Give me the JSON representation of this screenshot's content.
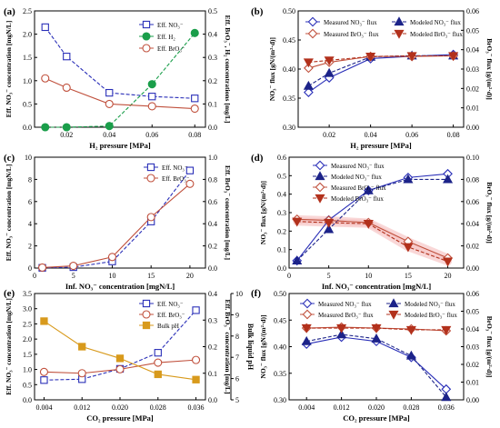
{
  "colors": {
    "blue": "#2a2fb8",
    "green": "#1a9e4a",
    "red": "#c0503c",
    "orange": "#d89a1c",
    "navy": "#1c2389",
    "darkred": "#b2311c",
    "pink": "#f0b2b2",
    "teal": "#3aa29a",
    "pinkband": "#f7c6c6"
  },
  "chart_data": [
    {
      "id": "a",
      "type": "line",
      "panel_label": "(a)",
      "xlabel": "H₂ pressure [MPa]",
      "ylabel": "Eff. NO₃⁻ concentration [mgN/L]",
      "y2label": "Eff. BrO₃⁻, H₂ concentrations [mg/L]",
      "xlim": [
        0.005,
        0.085
      ],
      "ylim": [
        0,
        2.5
      ],
      "y2lim": [
        0,
        0.5
      ],
      "xticks": [
        "0.02",
        "0.04",
        "0.06",
        "0.08"
      ],
      "yticks": [
        "0.0",
        "0.5",
        "1.0",
        "1.5",
        "2.0",
        "2.5"
      ],
      "y2ticks": [
        "0.0",
        "0.1",
        "0.2",
        "0.3",
        "0.4",
        "0.5"
      ],
      "x": [
        0.01,
        0.02,
        0.04,
        0.06,
        0.08
      ],
      "series": [
        {
          "name": "Eff. NO₃⁻",
          "axis": "left",
          "values": [
            2.15,
            1.52,
            0.74,
            0.66,
            0.62
          ]
        },
        {
          "name": "Eff. H₂",
          "axis": "right",
          "values": [
            0.0,
            0.0,
            0.005,
            0.185,
            0.405
          ]
        },
        {
          "name": "Eff. BrO₃⁻",
          "axis": "right",
          "values": [
            0.21,
            0.17,
            0.1,
            0.09,
            0.08
          ]
        }
      ],
      "legend": "top-right"
    },
    {
      "id": "b",
      "type": "line",
      "panel_label": "(b)",
      "xlabel": "H₂ pressure [MPa]",
      "ylabel": "NO₃⁻ flux [gN/(m²·d)]",
      "y2label": "BrO₃⁻ flux [g/(m²·d)]",
      "xlim": [
        0.005,
        0.085
      ],
      "ylim": [
        0.3,
        0.5
      ],
      "y2lim": [
        0,
        0.06
      ],
      "xticks": [
        "0.02",
        "0.04",
        "0.06",
        "0.08"
      ],
      "yticks": [
        "0.30",
        "0.35",
        "0.40",
        "0.45",
        "0.50"
      ],
      "y2ticks": [
        "0.00",
        "0.01",
        "0.02",
        "0.03",
        "0.04",
        "0.05",
        "0.06"
      ],
      "x": [
        0.01,
        0.02,
        0.04,
        0.06,
        0.08
      ],
      "series": [
        {
          "name": "Measured NO₃⁻ flux",
          "axis": "left",
          "values": [
            0.36,
            0.385,
            0.418,
            0.422,
            0.425
          ]
        },
        {
          "name": "Modeled NO₃⁻ flux",
          "axis": "left",
          "values": [
            0.371,
            0.393,
            0.421,
            0.423,
            0.423
          ]
        },
        {
          "name": "Measured BrO₃⁻ flux",
          "axis": "right",
          "values": [
            0.0305,
            0.0335,
            0.0365,
            0.0365,
            0.0368
          ]
        },
        {
          "name": "Modeled BrO₃⁻ flux",
          "axis": "right",
          "values": [
            0.0335,
            0.0345,
            0.0365,
            0.0368,
            0.0368
          ]
        }
      ],
      "legend": "top"
    },
    {
      "id": "c",
      "type": "line",
      "panel_label": "(c)",
      "xlabel": "Inf. NO₃⁻ concentration [mgN/L]",
      "ylabel": "Eff. NO₃⁻ concentration [mgN/L]",
      "y2label": "Eff. BrO₃⁻ concentration [mg/L]",
      "xlim": [
        0,
        22
      ],
      "ylim": [
        0,
        10
      ],
      "y2lim": [
        0,
        1.0
      ],
      "xticks": [
        "0",
        "5",
        "10",
        "15",
        "20"
      ],
      "yticks": [
        "0",
        "2",
        "4",
        "6",
        "8",
        "10"
      ],
      "y2ticks": [
        "0.0",
        "0.2",
        "0.4",
        "0.6",
        "0.8",
        "1.0"
      ],
      "x": [
        1,
        5,
        10,
        15,
        20
      ],
      "series": [
        {
          "name": "Eff. NO₃⁻",
          "axis": "left",
          "values": [
            0.02,
            0.08,
            0.6,
            4.2,
            8.8
          ]
        },
        {
          "name": "Eff. BrO₃⁻",
          "axis": "right",
          "values": [
            0.005,
            0.02,
            0.1,
            0.46,
            0.76
          ]
        }
      ],
      "legend": "top-right"
    },
    {
      "id": "d",
      "type": "line",
      "panel_label": "(d)",
      "xlabel": "Inf. NO₃⁻ concentration [mgN/L]",
      "ylabel": "NO₃⁻ flux [gN/(m²·d)]",
      "y2label": "BrO₃⁻ flux [g/(m²·d)]",
      "xlim": [
        0,
        22
      ],
      "ylim": [
        0,
        0.6
      ],
      "y2lim": [
        0,
        0.1
      ],
      "xticks": [
        "0",
        "5",
        "10",
        "15",
        "20"
      ],
      "yticks": [
        "0.0",
        "0.1",
        "0.2",
        "0.3",
        "0.4",
        "0.5",
        "0.6"
      ],
      "y2ticks": [
        "0.00",
        "0.02",
        "0.04",
        "0.06",
        "0.08",
        "0.10"
      ],
      "x": [
        1,
        5,
        10,
        15,
        20
      ],
      "series": [
        {
          "name": "Measured NO₃⁻ flux",
          "axis": "left",
          "values": [
            0.04,
            0.26,
            0.42,
            0.49,
            0.51
          ]
        },
        {
          "name": "Modeled NO₃⁻ flux",
          "axis": "left",
          "values": [
            0.04,
            0.21,
            0.42,
            0.48,
            0.48
          ]
        },
        {
          "name": "Measured BrO₃⁻ flux",
          "axis": "right",
          "values": [
            0.044,
            0.043,
            0.041,
            0.024,
            0.009
          ]
        },
        {
          "name": "Modeled BrO₃⁻ flux",
          "axis": "right",
          "values": [
            0.042,
            0.041,
            0.04,
            0.019,
            0.006
          ]
        }
      ],
      "legend": "top"
    },
    {
      "id": "e",
      "type": "line",
      "panel_label": "(e)",
      "xlabel": "CO₂ pressure [MPa]",
      "ylabel": "Eff. NO₃⁻ concentration [mgN/L]",
      "y2label": "Eff. BrO₃⁻ concentration [mg/L]",
      "y3label": "Bulk liquid pH",
      "xlim": [
        0.002,
        0.038
      ],
      "ylim": [
        0,
        3.5
      ],
      "y2lim": [
        0,
        0.4
      ],
      "y3lim": [
        5,
        10
      ],
      "xticks": [
        "0.004",
        "0.012",
        "0.020",
        "0.028",
        "0.036"
      ],
      "yticks": [
        "0.0",
        "0.5",
        "1.0",
        "1.5",
        "2.0",
        "2.5",
        "3.0",
        "3.5"
      ],
      "y2ticks": [
        "0.0",
        "0.1",
        "0.2",
        "0.3",
        "0.4"
      ],
      "y3ticks": [
        "5",
        "6",
        "7",
        "8",
        "9",
        "10"
      ],
      "x": [
        0.004,
        0.012,
        0.02,
        0.028,
        0.036
      ],
      "series": [
        {
          "name": "Eff. NO₃⁻",
          "axis": "left",
          "values": [
            0.65,
            0.68,
            1.02,
            1.55,
            2.95
          ]
        },
        {
          "name": "Eff. BrO₃⁻",
          "axis": "right",
          "values": [
            0.105,
            0.1,
            0.115,
            0.14,
            0.15
          ]
        },
        {
          "name": "Bulk pH",
          "axis": "right2",
          "values": [
            8.7,
            7.5,
            6.95,
            6.2,
            5.95
          ]
        }
      ],
      "legend": "top-left"
    },
    {
      "id": "f",
      "type": "line",
      "panel_label": "(f)",
      "xlabel": "CO₂ pressure [MPa]",
      "ylabel": "NO₃⁻ flux [gN/(m²·d)]",
      "y2label": "BrO₃⁻ flux [g/(m²·d)]",
      "xlim": [
        0,
        0.04
      ],
      "ylim": [
        0.3,
        0.5
      ],
      "y2lim": [
        0,
        0.06
      ],
      "xticks": [
        "0.004",
        "0.012",
        "0.020",
        "0.028",
        "0.036"
      ],
      "yticks": [
        "0.30",
        "0.35",
        "0.40",
        "0.45",
        "0.50"
      ],
      "y2ticks": [
        "0.00",
        "0.01",
        "0.02",
        "0.03",
        "0.04",
        "0.05",
        "0.06"
      ],
      "x": [
        0.004,
        0.012,
        0.02,
        0.028,
        0.036
      ],
      "series": [
        {
          "name": "Measured NO₃⁻ flux",
          "axis": "left",
          "values": [
            0.405,
            0.418,
            0.41,
            0.38,
            0.32
          ]
        },
        {
          "name": "Modeled NO₃⁻ flux",
          "axis": "left",
          "values": [
            0.41,
            0.423,
            0.415,
            0.383,
            0.305
          ]
        },
        {
          "name": "Measured BrO₃⁻ flux",
          "axis": "right",
          "values": [
            0.0405,
            0.041,
            0.0405,
            0.04,
            0.039
          ]
        },
        {
          "name": "Modeled BrO₃⁻ flux",
          "axis": "right",
          "values": [
            0.0405,
            0.0405,
            0.0405,
            0.0395,
            0.0395
          ]
        }
      ],
      "legend": "top"
    }
  ]
}
